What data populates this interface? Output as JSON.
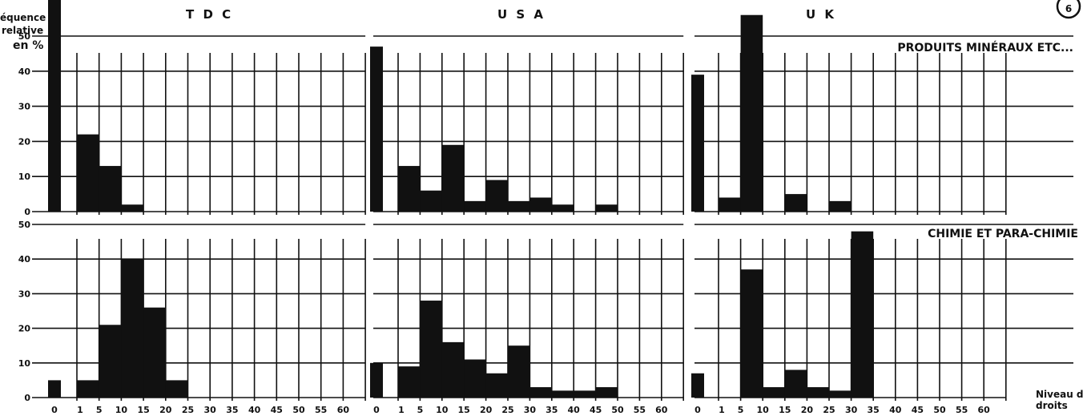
{
  "figure": {
    "ylabel_lines": [
      "équence",
      "relative",
      "en %"
    ],
    "section_titles": [
      "PRODUITS MINÉRAUX ETC...",
      "CHIMIE ET PARA-CHIMIE"
    ],
    "column_titles": [
      "T D C",
      "U S A",
      "U K"
    ],
    "corner_mark": "6",
    "xlabel_lines": [
      "Niveau des",
      "droits"
    ]
  },
  "chart_data": [
    {
      "type": "bar",
      "column": "T D C",
      "section": "PRODUITS MINÉRAUX ETC...",
      "zero_bar": 64,
      "categories": [
        "0-5",
        "5-10",
        "10-15",
        "15-20",
        "20-25",
        "25-30",
        "30-35",
        "35-40",
        "40-45",
        "45-50",
        "50-55",
        "55-60",
        "60-65"
      ],
      "values": [
        22,
        13,
        2,
        0,
        0,
        0,
        0,
        0,
        0,
        0,
        0,
        0,
        0
      ],
      "ylim": [
        0,
        55
      ],
      "yticks": [
        "50",
        "40",
        "30",
        "20",
        "10",
        "0"
      ],
      "xticks": [
        "0",
        "1",
        "5",
        "10",
        "15",
        "20",
        "25",
        "30",
        "35",
        "40",
        "45",
        "50",
        "55",
        "60"
      ]
    },
    {
      "type": "bar",
      "column": "U S A",
      "section": "PRODUITS MINÉRAUX ETC...",
      "zero_bar": 47,
      "categories": [
        "0-5",
        "5-10",
        "10-15",
        "15-20",
        "20-25",
        "25-30",
        "30-35",
        "35-40",
        "40-45",
        "45-50",
        "50-55",
        "55-60",
        "60-65"
      ],
      "values": [
        13,
        6,
        19,
        3,
        9,
        3,
        4,
        2,
        0,
        2,
        0,
        0,
        0
      ],
      "ylim": [
        0,
        55
      ],
      "xticks": [
        "0",
        "1",
        "5",
        "10",
        "15",
        "20",
        "25",
        "30",
        "35",
        "40",
        "45",
        "50",
        "55",
        "60"
      ]
    },
    {
      "type": "bar",
      "column": "U K",
      "section": "PRODUITS MINÉRAUX ETC...",
      "zero_bar": 39,
      "categories": [
        "0-5",
        "5-10",
        "10-15",
        "15-20",
        "20-25",
        "25-30",
        "30-35",
        "35-40",
        "40-45",
        "45-50",
        "50-55",
        "55-60",
        "60-65"
      ],
      "values": [
        4,
        56,
        0,
        5,
        0,
        3,
        0,
        0,
        0,
        0,
        0,
        0,
        0
      ],
      "ylim": [
        0,
        55
      ],
      "xticks": [
        "0",
        "1",
        "5",
        "10",
        "15",
        "20",
        "25",
        "30",
        "35",
        "40",
        "45",
        "50",
        "55",
        "60"
      ]
    },
    {
      "type": "bar",
      "column": "T D C",
      "section": "CHIMIE ET PARA-CHIMIE",
      "zero_bar": 5,
      "categories": [
        "0-5",
        "5-10",
        "10-15",
        "15-20",
        "20-25",
        "25-30",
        "30-35",
        "35-40",
        "40-45",
        "45-50",
        "50-55",
        "55-60",
        "60-65"
      ],
      "values": [
        5,
        21,
        40,
        26,
        5,
        0,
        0,
        0,
        0,
        0,
        0,
        0,
        0
      ],
      "ylim": [
        0,
        55
      ],
      "yticks": [
        "50",
        "40",
        "30",
        "20",
        "10",
        "0"
      ],
      "xticks": [
        "0",
        "1",
        "5",
        "10",
        "15",
        "20",
        "25",
        "30",
        "35",
        "40",
        "45",
        "50",
        "55",
        "60"
      ]
    },
    {
      "type": "bar",
      "column": "U S A",
      "section": "CHIMIE ET PARA-CHIMIE",
      "zero_bar": 10,
      "categories": [
        "0-5",
        "5-10",
        "10-15",
        "15-20",
        "20-25",
        "25-30",
        "30-35",
        "35-40",
        "40-45",
        "45-50",
        "50-55",
        "55-60",
        "60-65"
      ],
      "values": [
        9,
        28,
        16,
        11,
        7,
        15,
        3,
        2,
        2,
        3,
        0,
        0,
        0
      ],
      "ylim": [
        0,
        55
      ],
      "xticks": [
        "0",
        "1",
        "5",
        "10",
        "15",
        "20",
        "25",
        "30",
        "35",
        "40",
        "45",
        "50",
        "55",
        "60"
      ]
    },
    {
      "type": "bar",
      "column": "U K",
      "section": "CHIMIE ET PARA-CHIMIE",
      "zero_bar": 7,
      "categories": [
        "0-5",
        "5-10",
        "10-15",
        "15-20",
        "20-25",
        "25-30",
        "30-35",
        "35-40",
        "40-45",
        "45-50",
        "50-55",
        "55-60",
        "60-65"
      ],
      "values": [
        0,
        37,
        3,
        8,
        3,
        2,
        48,
        0,
        0,
        0,
        0,
        0,
        0
      ],
      "ylim": [
        0,
        55
      ],
      "xticks": [
        "0",
        "1",
        "5",
        "10",
        "15",
        "20",
        "25",
        "30",
        "35",
        "40",
        "45",
        "50",
        "55",
        "60"
      ]
    }
  ]
}
